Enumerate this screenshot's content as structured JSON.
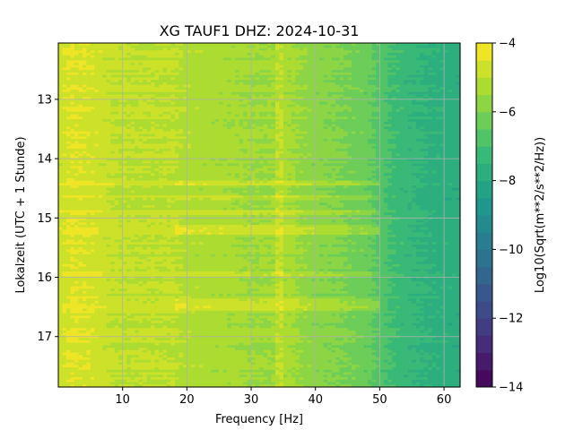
{
  "chart_data": {
    "type": "heatmap",
    "title": "XG TAUF1  DHZ: 2024-10-31",
    "xlabel": "Frequency [Hz]",
    "ylabel": "Lokalzeit (UTC + 1 Stunde)",
    "xlim": [
      0,
      62.5
    ],
    "ylim": [
      17.85,
      12.05
    ],
    "x_ticks": [
      10,
      20,
      30,
      40,
      50,
      60
    ],
    "y_ticks": [
      13,
      14,
      15,
      16,
      17
    ],
    "grid": true,
    "colorbar": {
      "label": "Log10(Sqrt(m**2/s**2/Hz))",
      "range": [
        -14,
        -4
      ],
      "ticks": [
        -14,
        -12,
        -10,
        -8,
        -6,
        -4
      ],
      "tick_labels": [
        "−14",
        "−12",
        "−10",
        "−8",
        "−6",
        "−4"
      ],
      "colormap": "viridis",
      "levels": 20
    },
    "frequency_profile": {
      "frequency_hz": [
        0,
        2,
        5,
        8,
        10,
        14,
        18,
        20,
        25,
        30,
        33,
        35,
        38,
        40,
        44,
        48,
        50,
        52,
        55,
        58,
        60,
        62.5
      ],
      "log10_amplitude": [
        -4.8,
        -4.5,
        -4.6,
        -4.9,
        -5.0,
        -5.0,
        -5.0,
        -5.2,
        -5.3,
        -5.5,
        -5.5,
        -5.3,
        -5.6,
        -5.8,
        -6.0,
        -6.3,
        -6.7,
        -7.1,
        -7.4,
        -7.6,
        -7.7,
        -7.8
      ]
    },
    "time_bands": [
      {
        "time_start": 14.35,
        "time_end": 14.45,
        "delta": 0.55
      },
      {
        "time_start": 14.6,
        "time_end": 14.72,
        "delta": 0.45
      },
      {
        "time_start": 14.85,
        "time_end": 14.95,
        "delta": 0.5
      },
      {
        "time_start": 15.1,
        "time_end": 15.28,
        "delta": 0.7
      },
      {
        "time_start": 15.9,
        "time_end": 15.98,
        "delta": 0.3
      },
      {
        "time_start": 16.35,
        "time_end": 16.55,
        "delta": 0.65
      }
    ],
    "line_feature": {
      "frequency_hz": 34.5,
      "delta": 0.5
    }
  }
}
